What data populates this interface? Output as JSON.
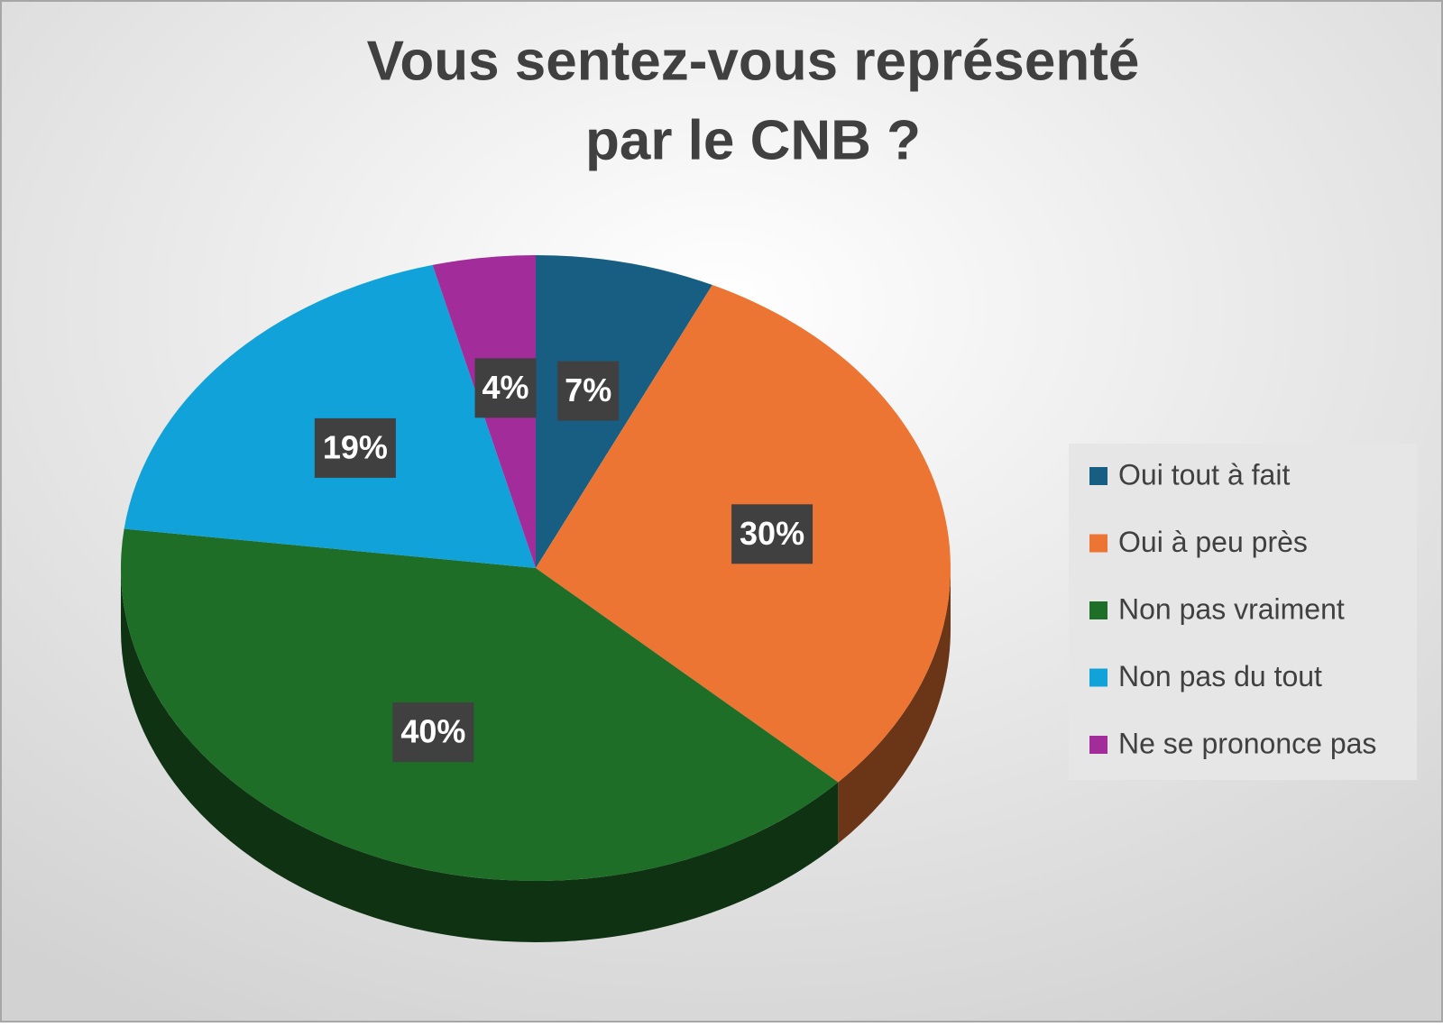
{
  "chart_data": {
    "type": "pie3d",
    "title": [
      "Vous sentez-vous représenté",
      "par le CNB ?"
    ],
    "categories": [
      "Oui tout à fait",
      "Oui à peu près",
      "Non pas vraiment",
      "Non pas du tout",
      "Ne se prononce pas"
    ],
    "values": [
      7,
      30,
      40,
      19,
      4
    ],
    "value_labels": [
      "7%",
      "30%",
      "40%",
      "19%",
      "4%"
    ],
    "colors": [
      "#175e82",
      "#ed7533",
      "#1e6e28",
      "#10a2d8",
      "#a22c9a"
    ],
    "legend": "right"
  }
}
